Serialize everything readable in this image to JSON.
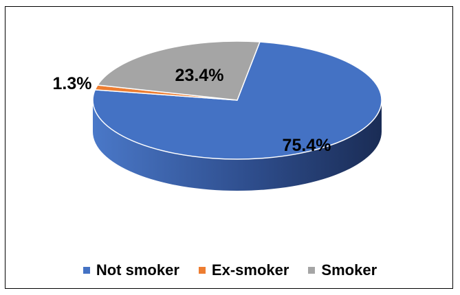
{
  "chart_data": {
    "type": "pie",
    "title": "",
    "style": "3d",
    "categories": [
      "Not smoker",
      "Ex-smoker",
      "Smoker"
    ],
    "values": [
      75.4,
      1.3,
      23.4
    ],
    "labels": [
      "75.4%",
      "1.3%",
      "23.4%"
    ],
    "colors": [
      "#4472C4",
      "#ED7D31",
      "#A5A5A5"
    ],
    "legend_position": "bottom"
  }
}
